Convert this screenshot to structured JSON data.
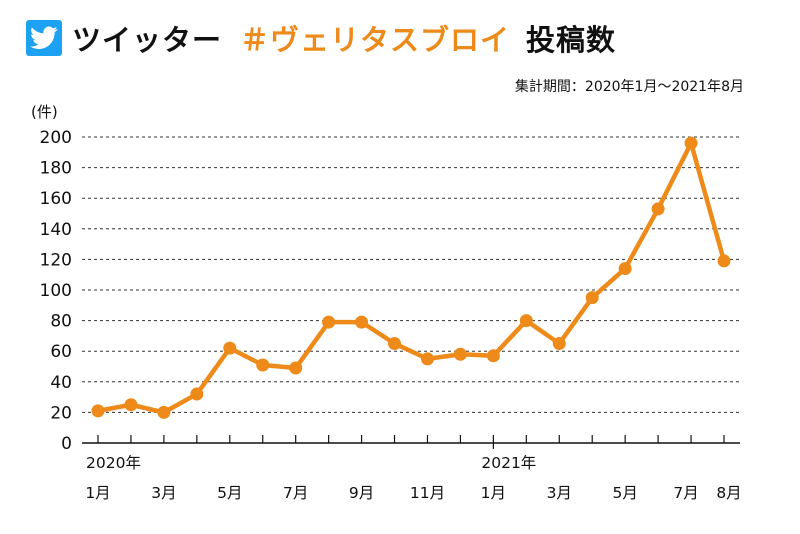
{
  "title": {
    "platform": "ツイッター",
    "hashtag": "＃ヴェリタスブロイ",
    "suffix": "投稿数"
  },
  "period_label": "集計期間：2020年1月～2021年8月",
  "icons": {
    "platform_icon": "twitter-bird-icon"
  },
  "colors": {
    "accent": "#ED8A1A",
    "twitter_blue": "#1DA1F2",
    "grid": "#333333",
    "text": "#111111"
  },
  "chart_data": {
    "type": "line",
    "ylabel": "(件)",
    "ylim": [
      0,
      200
    ],
    "yticks": [
      "0",
      "20",
      "40",
      "60",
      "80",
      "100",
      "120",
      "140",
      "160",
      "180",
      "200"
    ],
    "grid": "horizontal dashed",
    "x": [
      "2020-01",
      "2020-02",
      "2020-03",
      "2020-04",
      "2020-05",
      "2020-06",
      "2020-07",
      "2020-08",
      "2020-09",
      "2020-10",
      "2020-11",
      "2020-12",
      "2021-01",
      "2021-02",
      "2021-03",
      "2021-04",
      "2021-05",
      "2021-06",
      "2021-07",
      "2021-08"
    ],
    "xtick_labels": [
      "1月",
      "",
      "3月",
      "",
      "5月",
      "",
      "7月",
      "",
      "9月",
      "",
      "11月",
      "",
      "1月",
      "",
      "3月",
      "",
      "5月",
      "",
      "7月",
      "8月"
    ],
    "year_labels": [
      {
        "index": 0,
        "text": "2020年"
      },
      {
        "index": 12,
        "text": "2021年"
      }
    ],
    "values": [
      21,
      25,
      20,
      32,
      62,
      51,
      49,
      79,
      79,
      65,
      55,
      58,
      57,
      80,
      65,
      95,
      114,
      153,
      196,
      119
    ]
  }
}
